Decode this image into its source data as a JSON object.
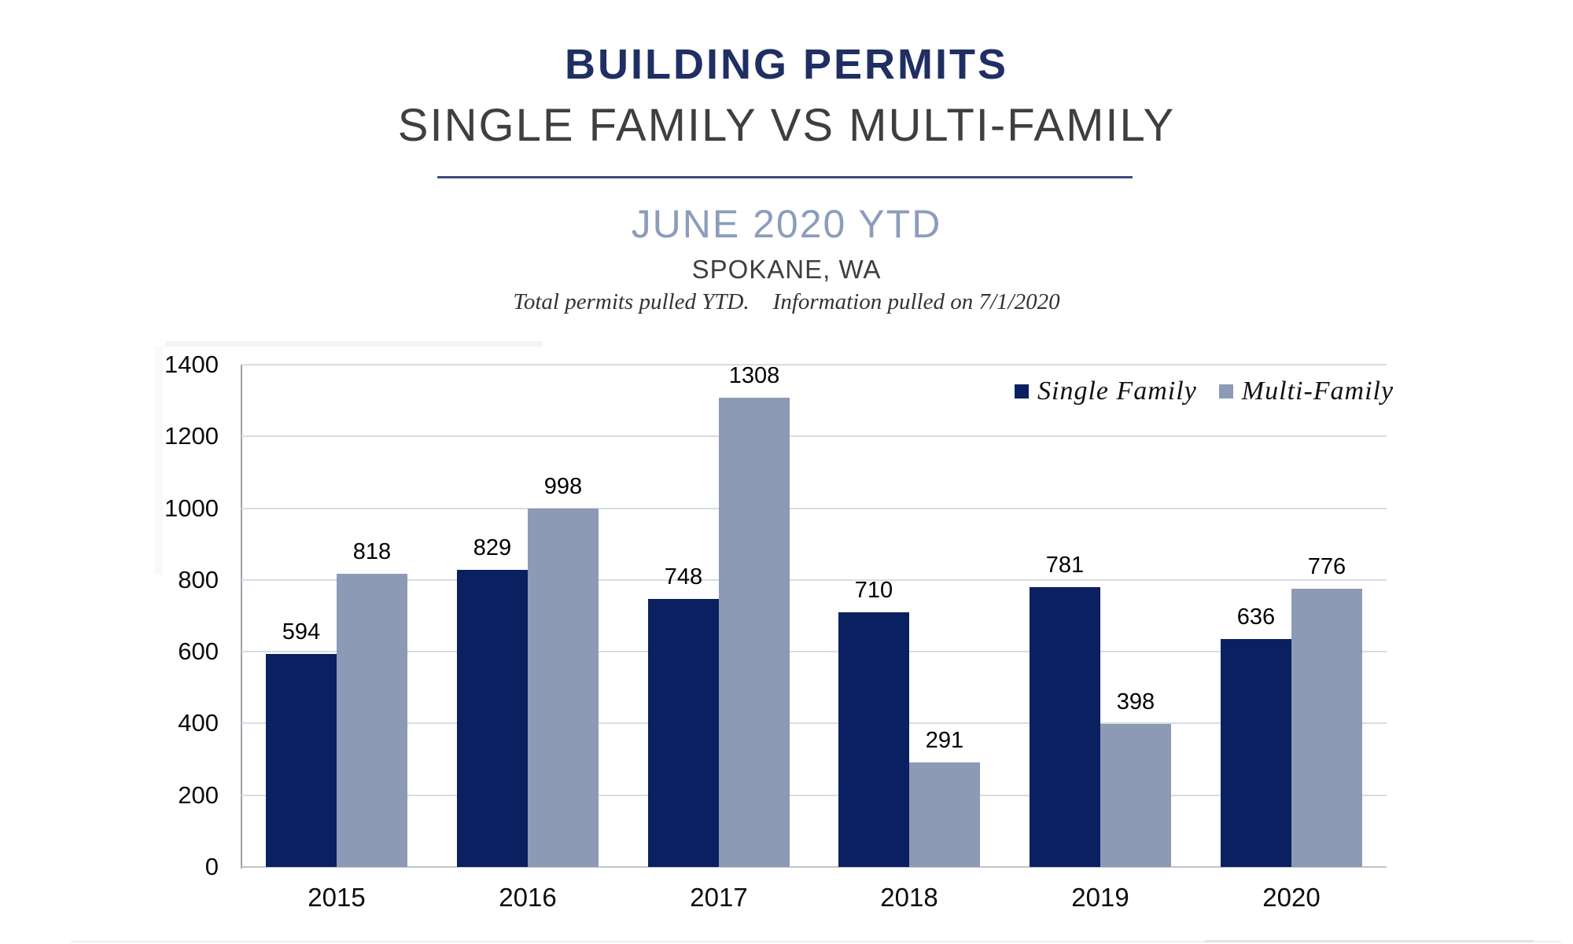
{
  "header": {
    "title": "BUILDING PERMITS",
    "subtitle": "SINGLE FAMILY VS MULTI-FAMILY",
    "period": "JUNE 2020 YTD",
    "location": "SPOKANE, WA",
    "note_left": "Total permits pulled YTD.",
    "note_right": "Information pulled on 7/1/2020"
  },
  "chart_data": {
    "type": "bar",
    "title": "BUILDING PERMITS",
    "subtitle": "SINGLE FAMILY VS MULTI-FAMILY",
    "categories": [
      "2015",
      "2016",
      "2017",
      "2018",
      "2019",
      "2020"
    ],
    "series": [
      {
        "name": "Single Family",
        "color": "#0B2060",
        "values": [
          594,
          829,
          748,
          710,
          781,
          636
        ]
      },
      {
        "name": "Multi-Family",
        "color": "#8C9AB5",
        "values": [
          818,
          998,
          1308,
          291,
          398,
          776
        ]
      }
    ],
    "xlabel": "",
    "ylabel": "",
    "ylim": [
      0,
      1400
    ],
    "yticks": [
      0,
      200,
      400,
      600,
      800,
      1000,
      1200,
      1400
    ],
    "grid": true,
    "legend_position": "top-right",
    "value_labels": true
  },
  "colors": {
    "title_navy": "#1F2F63",
    "subtitle_gray": "#3F3F3F",
    "period_blue": "#8C9DBC",
    "single_family": "#0B2060",
    "multi_family": "#8C9AB5",
    "gridline": "#D8DCE2",
    "baseline": "#C2C6CC",
    "axis_line": "#9AA0A8"
  }
}
